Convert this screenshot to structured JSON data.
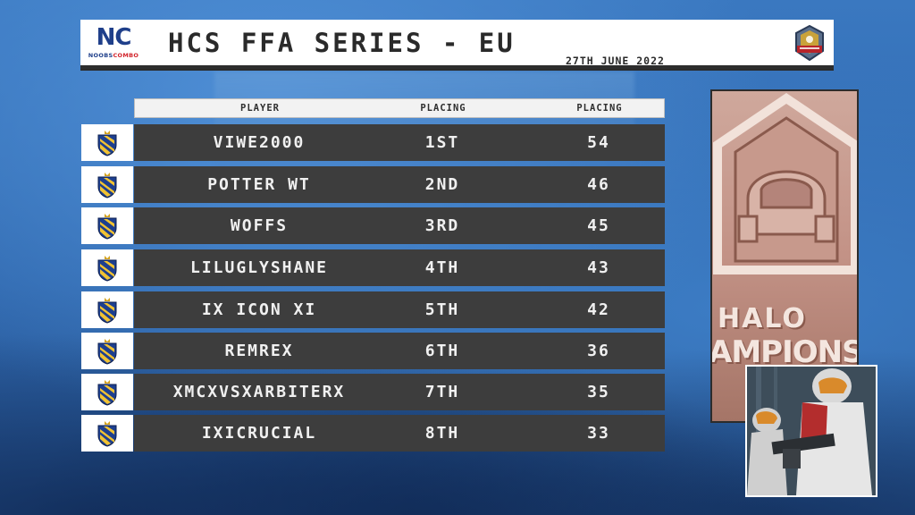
{
  "header": {
    "logo_letters": "NC",
    "logo_sub_left": "NOOBS",
    "logo_sub_right": "COMBO",
    "title": "HCS FFA SERIES - EU",
    "date": "27TH JUNE 2022",
    "badge_icon": "halo-championship-badge-icon"
  },
  "table": {
    "columns": [
      "PLAYER",
      "PLACING",
      "PLACING"
    ],
    "rows": [
      {
        "player": "VIWE2000",
        "placing": "1ST",
        "points": "54"
      },
      {
        "player": "POTTER WT",
        "placing": "2ND",
        "points": "46"
      },
      {
        "player": "WOFFS",
        "placing": "3RD",
        "points": "45"
      },
      {
        "player": "LILUGLYSHANE",
        "placing": "4TH",
        "points": "43"
      },
      {
        "player": "IX ICON XI",
        "placing": "5TH",
        "points": "42"
      },
      {
        "player": "REMREX",
        "placing": "6TH",
        "points": "36"
      },
      {
        "player": "XMCXVSXARBITERX",
        "placing": "7TH",
        "points": "35"
      },
      {
        "player": "IXICRUCIAL",
        "placing": "8TH",
        "points": "33"
      }
    ],
    "row_icon": "team-crest-icon"
  },
  "poster": {
    "line1": "HALO",
    "line2": "AMPIONSH"
  },
  "colors": {
    "background": "#3a78c0",
    "row_bar": "#3d3d3d",
    "row_text": "#f0f0f0",
    "logo_blue": "#1f3f8a",
    "logo_red": "#d2232a"
  }
}
